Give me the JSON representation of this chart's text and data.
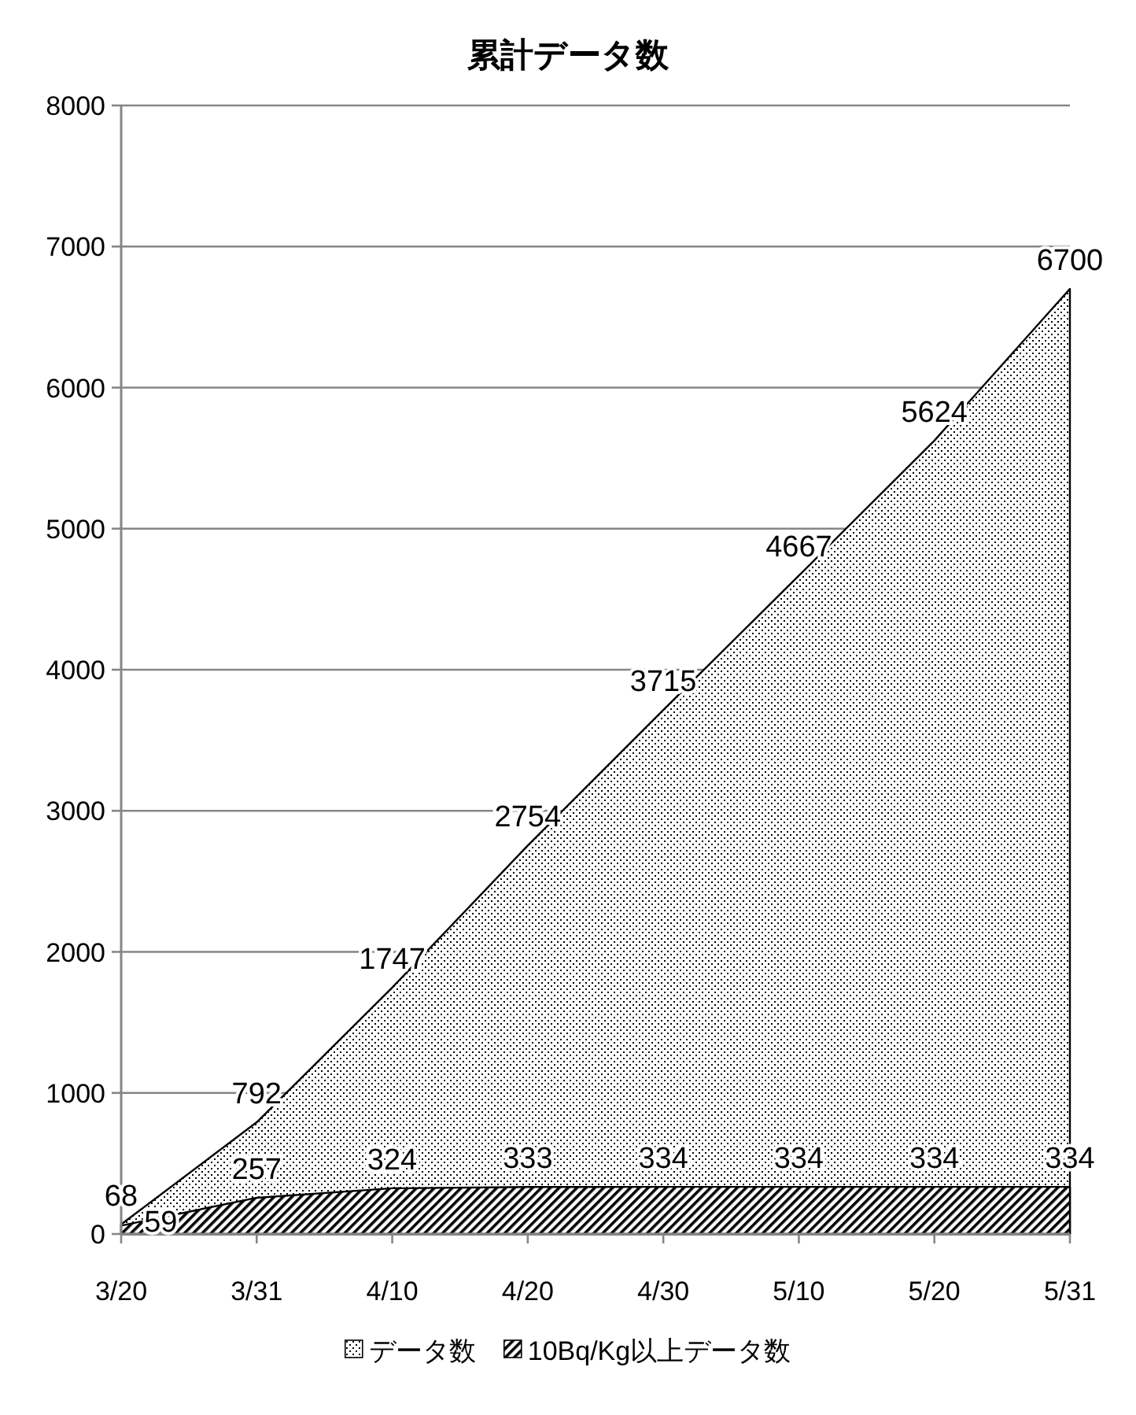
{
  "chart_data": {
    "type": "area",
    "title": "累計データ数",
    "categories": [
      "3/20",
      "3/31",
      "4/10",
      "4/20",
      "4/30",
      "5/10",
      "5/20",
      "5/31"
    ],
    "series": [
      {
        "name": "データ数",
        "color": "#000000",
        "values": [
          68,
          792,
          1747,
          2754,
          3715,
          4667,
          5624,
          6700
        ]
      },
      {
        "name": "10Bq/Kg以上データ数",
        "color": "#000000",
        "values": [
          59,
          257,
          324,
          333,
          334,
          334,
          334,
          334
        ]
      }
    ],
    "ylim": [
      0,
      8000
    ],
    "yticks": [
      0,
      1000,
      2000,
      3000,
      4000,
      5000,
      6000,
      7000,
      8000
    ],
    "grid": "y",
    "legend": "bottom",
    "data_labels": true
  }
}
